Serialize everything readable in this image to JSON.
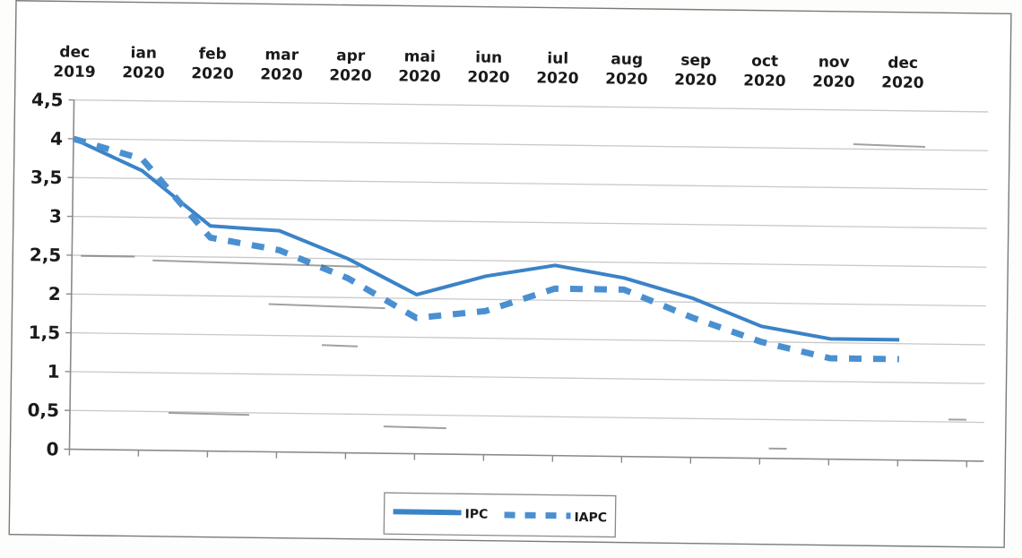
{
  "chart_data": {
    "type": "line",
    "title": "",
    "xlabel": "",
    "ylabel": "",
    "categories": [
      [
        "dec",
        "2019"
      ],
      [
        "ian",
        "2020"
      ],
      [
        "feb",
        "2020"
      ],
      [
        "mar",
        "2020"
      ],
      [
        "apr",
        "2020"
      ],
      [
        "mai",
        "2020"
      ],
      [
        "iun",
        "2020"
      ],
      [
        "iul",
        "2020"
      ],
      [
        "aug",
        "2020"
      ],
      [
        "sep",
        "2020"
      ],
      [
        "oct",
        "2020"
      ],
      [
        "nov",
        "2020"
      ],
      [
        "dec",
        "2020"
      ]
    ],
    "yticks": [
      "0",
      "0,5",
      "1",
      "1,5",
      "2",
      "2,5",
      "3",
      "3,5",
      "4",
      "4,5"
    ],
    "ylim": [
      0,
      4.5
    ],
    "grid": true,
    "legend_position": "bottom",
    "series": [
      {
        "name": "IPC",
        "style": "solid",
        "color": "#3b83c7",
        "values": [
          4.0,
          3.6,
          2.9,
          2.85,
          2.5,
          2.05,
          2.3,
          2.45,
          2.3,
          2.05,
          1.7,
          1.55,
          1.55
        ]
      },
      {
        "name": "IAPC",
        "style": "dashed",
        "color": "#4a90d0",
        "values": [
          4.0,
          3.75,
          2.75,
          2.6,
          2.25,
          1.75,
          1.85,
          2.15,
          2.15,
          1.8,
          1.5,
          1.3,
          1.3
        ]
      }
    ]
  }
}
